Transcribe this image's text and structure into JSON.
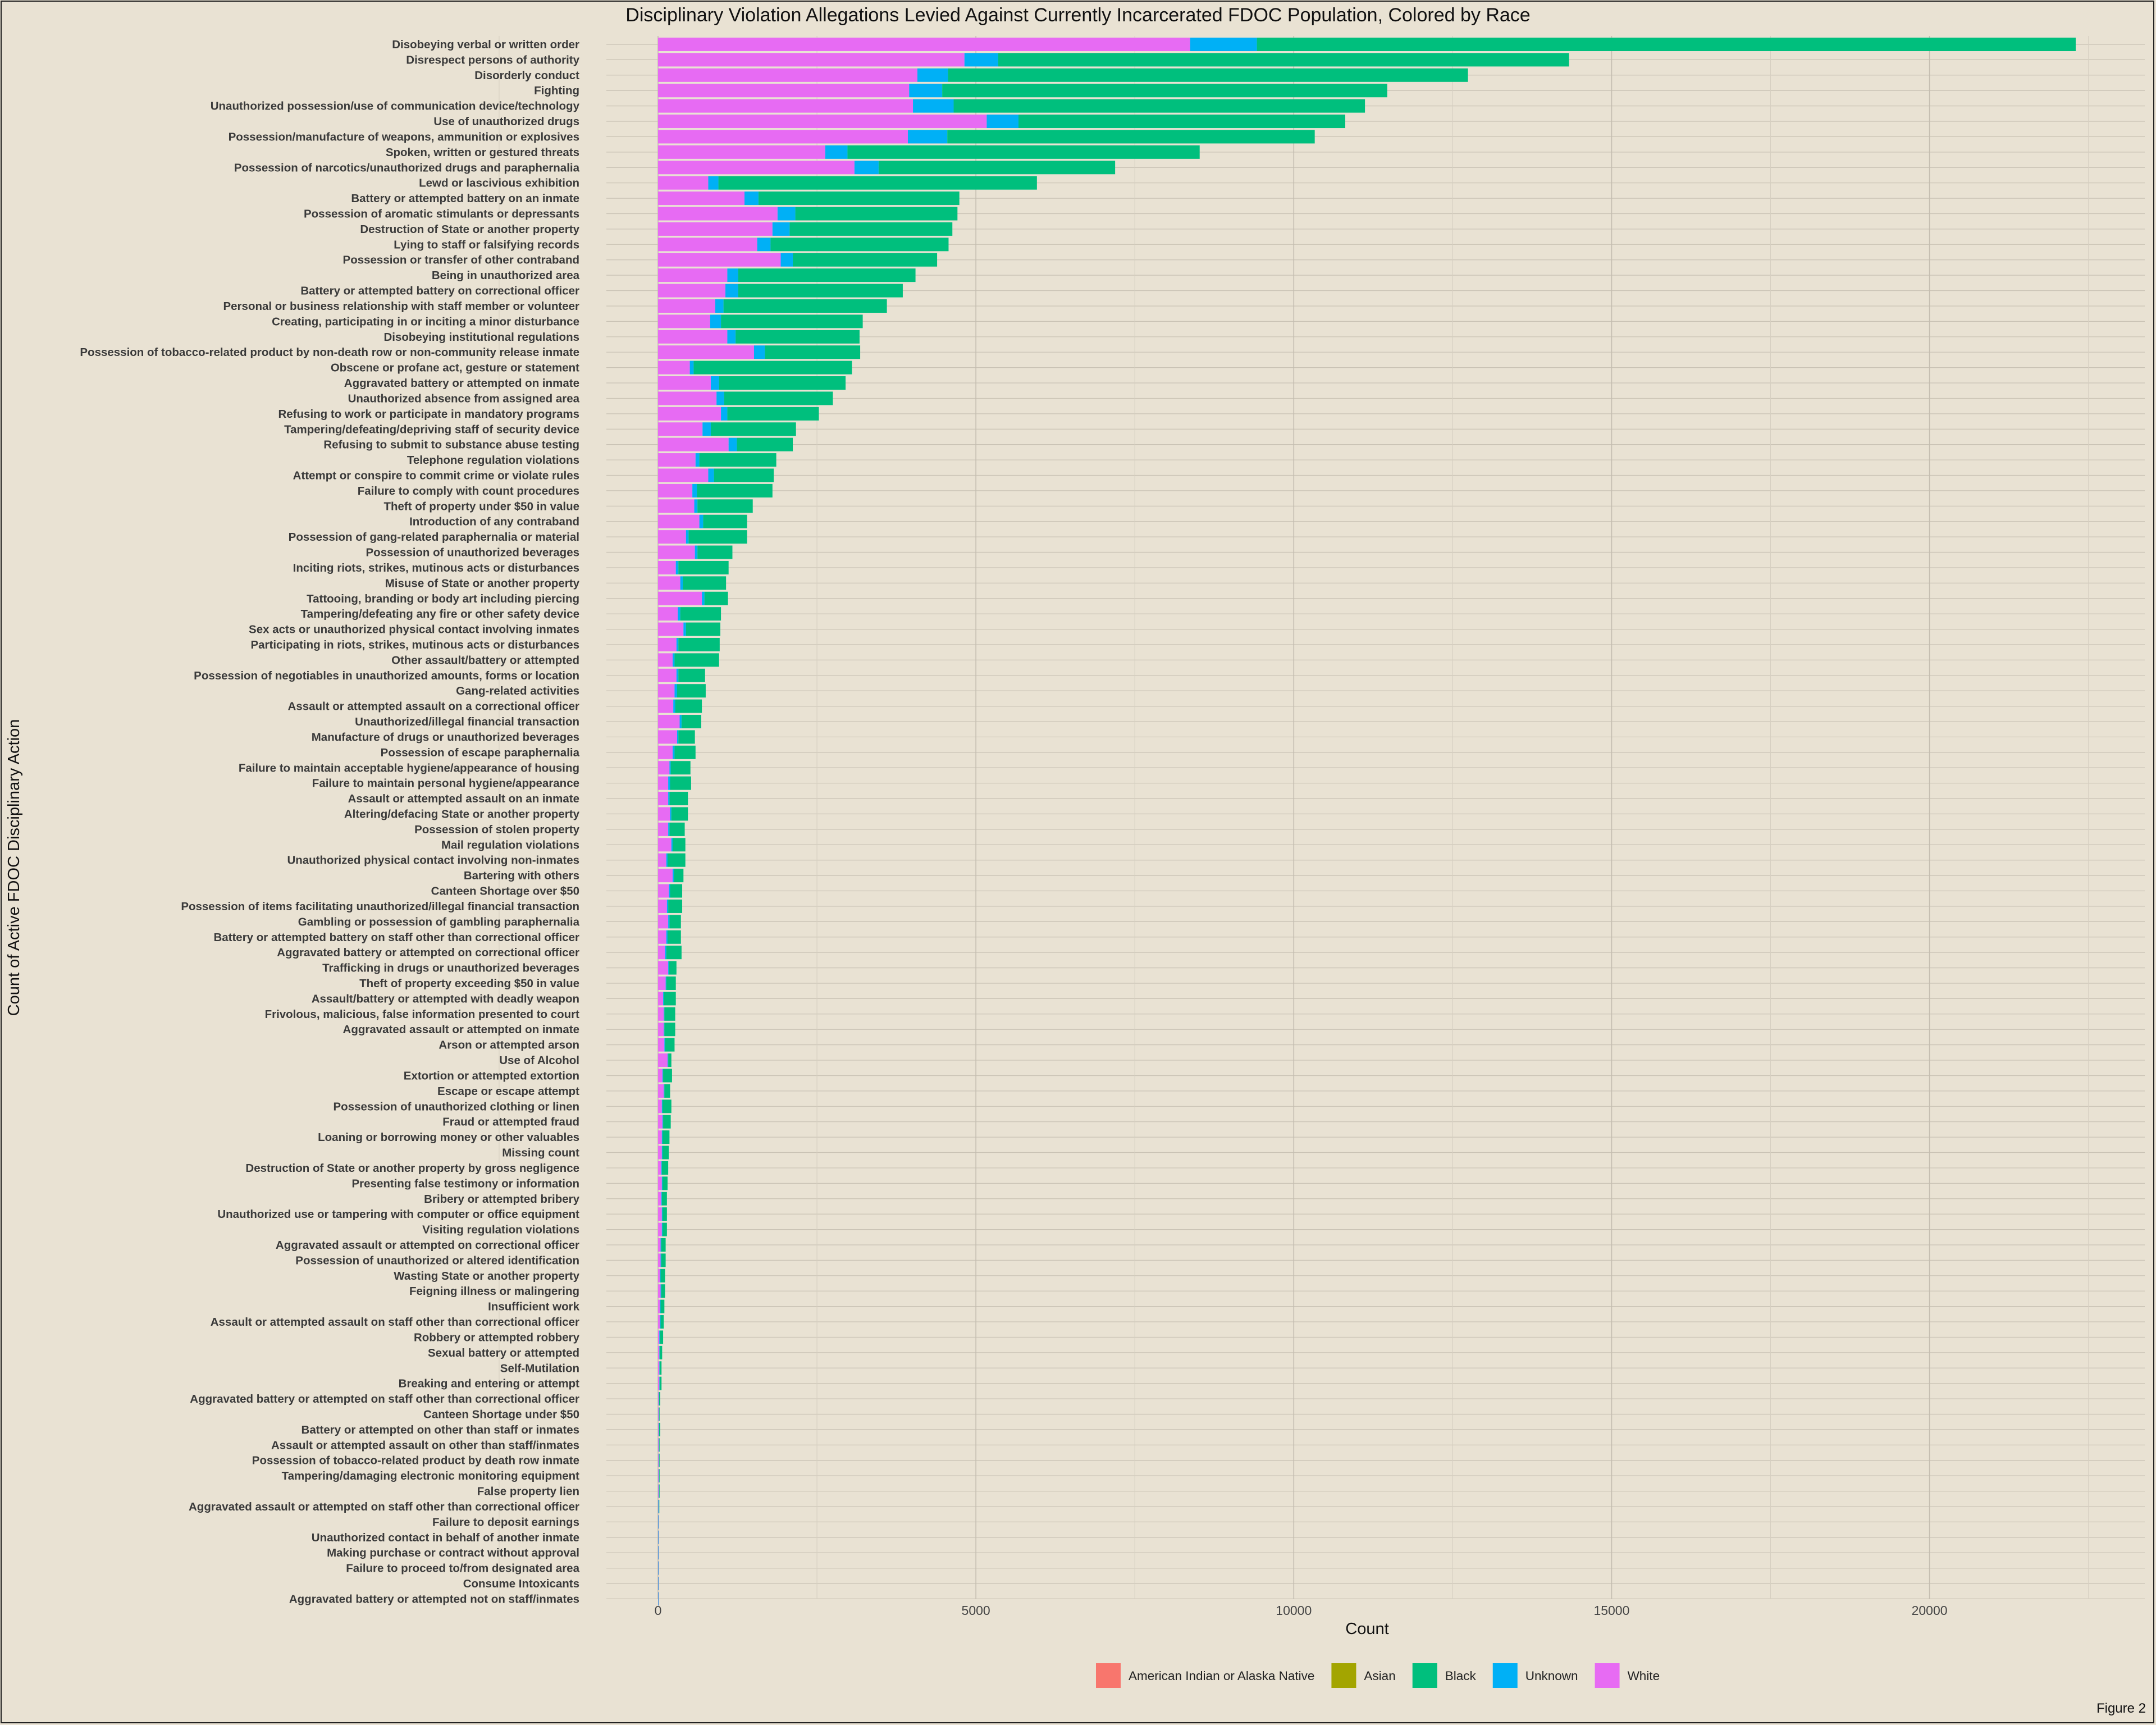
{
  "figure_label": "Figure 2",
  "chart_data": {
    "type": "bar",
    "orientation": "horizontal",
    "stacked": true,
    "title": "Disciplinary Violation Allegations Levied Against Currently Incarcerated FDOC Population, Colored by Race",
    "xlabel": "Count",
    "ylabel": "Count of Active FDOC Disciplinary Action",
    "xlim": [
      0,
      23000
    ],
    "xticks": [
      0,
      5000,
      10000,
      15000,
      20000
    ],
    "grid": true,
    "legend_position": "bottom",
    "legend": [
      {
        "name": "American Indian or Alaska Native",
        "color": "#f8766d"
      },
      {
        "name": "Asian",
        "color": "#a3a500"
      },
      {
        "name": "Black",
        "color": "#00bf7d"
      },
      {
        "name": "Unknown",
        "color": "#00b0f6"
      },
      {
        "name": "White",
        "color": "#e76bf3"
      }
    ],
    "stack_order": [
      "White",
      "Unknown",
      "Black"
    ],
    "categories": [
      "Disobeying verbal or written order",
      "Disrespect persons of authority",
      "Disorderly conduct",
      "Fighting",
      "Unauthorized possession/use of communication device/technology",
      "Use of unauthorized drugs",
      "Possession/manufacture of weapons, ammunition or explosives",
      "Spoken, written or gestured threats",
      "Possession of narcotics/unauthorized drugs and paraphernalia",
      "Lewd or lascivious exhibition",
      "Battery or attempted battery on an inmate",
      "Possession of aromatic stimulants or depressants",
      "Destruction of State or another property",
      "Lying to staff or falsifying records",
      "Possession or transfer of other contraband",
      "Being in unauthorized area",
      "Battery or attempted battery on correctional officer",
      "Personal or business relationship with staff member or volunteer",
      "Creating, participating in or inciting a minor disturbance",
      "Disobeying institutional regulations",
      "Possession of tobacco-related product by non-death row or non-community release inmate",
      "Obscene or profane act, gesture or statement",
      "Aggravated battery or attempted on inmate",
      "Unauthorized absence from assigned area",
      "Refusing to work or participate in mandatory programs",
      "Tampering/defeating/depriving staff of security device",
      "Refusing to submit to substance abuse testing",
      "Telephone regulation violations",
      "Attempt or conspire to commit crime or violate rules",
      "Failure to comply with count procedures",
      "Theft of property under $50 in value",
      "Introduction of any contraband",
      "Possession of gang-related paraphernalia or material",
      "Possession of unauthorized beverages",
      "Inciting riots, strikes, mutinous acts or disturbances",
      "Misuse of State or another property",
      "Tattooing, branding or body art including piercing",
      "Tampering/defeating any fire or other safety device",
      "Sex acts or unauthorized physical contact involving inmates",
      "Participating in riots, strikes, mutinous acts or disturbances",
      "Other assault/battery or attempted",
      "Possession of negotiables in unauthorized amounts, forms or location",
      "Gang-related activities",
      "Assault or attempted assault on a correctional officer",
      "Unauthorized/illegal financial transaction",
      "Manufacture of drugs or unauthorized beverages",
      "Possession of escape paraphernalia",
      "Failure to maintain acceptable hygiene/appearance of housing",
      "Failure to maintain personal hygiene/appearance",
      "Assault or attempted assault on an inmate",
      "Altering/defacing State or another property",
      "Possession of stolen property",
      "Mail regulation violations",
      "Unauthorized physical contact involving non-inmates",
      "Bartering with others",
      "Canteen Shortage over $50",
      "Possession of items facilitating unauthorized/illegal financial transaction",
      "Gambling or possession of gambling paraphernalia",
      "Battery or attempted battery on staff other than correctional officer",
      "Aggravated battery or attempted on correctional officer",
      "Trafficking in drugs or unauthorized beverages",
      "Theft of property exceeding $50 in value",
      "Assault/battery or attempted with deadly weapon",
      "Frivolous, malicious, false information presented to court",
      "Aggravated assault or attempted on inmate",
      "Arson or attempted arson",
      "Use of Alcohol",
      "Extortion or attempted extortion",
      "Escape or escape attempt",
      "Possession of unauthorized clothing or linen",
      "Fraud or attempted fraud",
      "Loaning or borrowing money or other valuables",
      "Missing count",
      "Destruction of State or another property by gross negligence",
      "Presenting false testimony or information",
      "Bribery or attempted bribery",
      "Unauthorized use or tampering with computer or office equipment",
      "Visiting regulation violations",
      "Aggravated assault or attempted on correctional officer",
      "Possession of unauthorized or altered identification",
      "Wasting State or another property",
      "Feigning illness or malingering",
      "Insufficient work",
      "Assault or attempted assault on staff other than correctional officer",
      "Robbery or attempted robbery",
      "Sexual battery or attempted",
      "Self-Mutilation",
      "Breaking and entering or attempt",
      "Aggravated battery or attempted on staff other than correctional officer",
      "Canteen Shortage under $50",
      "Battery or attempted on other than staff or inmates",
      "Assault or attempted assault on other than staff/inmates",
      "Possession of tobacco-related product by death row inmate",
      "Tampering/damaging electronic monitoring equipment",
      "False property lien",
      "Aggravated assault or attempted on staff other than correctional officer",
      "Failure to deposit earnings",
      "Unauthorized contact in behalf of another inmate",
      "Making purchase or contract without approval",
      "Failure to proceed to/from designated area",
      "Consume Intoxicants",
      "Aggravated battery or attempted not on staff/inmates"
    ],
    "series": [
      {
        "name": "White",
        "color": "#e76bf3",
        "values": [
          8370,
          4820,
          4080,
          3950,
          4010,
          5170,
          3930,
          2630,
          3090,
          790,
          1360,
          1880,
          1800,
          1560,
          1930,
          1090,
          1060,
          900,
          820,
          1090,
          1510,
          500,
          830,
          920,
          990,
          700,
          1110,
          590,
          790,
          540,
          570,
          650,
          440,
          580,
          280,
          350,
          690,
          310,
          400,
          290,
          230,
          290,
          260,
          240,
          340,
          300,
          230,
          180,
          160,
          160,
          190,
          160,
          210,
          130,
          230,
          170,
          140,
          160,
          130,
          110,
          160,
          120,
          80,
          90,
          90,
          100,
          150,
          70,
          90,
          60,
          70,
          60,
          60,
          50,
          60,
          50,
          60,
          60,
          40,
          40,
          30,
          40,
          30,
          30,
          20,
          20,
          20,
          20,
          10,
          10,
          10,
          10,
          10,
          10,
          10,
          5,
          5,
          5,
          5,
          5,
          5,
          5
        ]
      },
      {
        "name": "Unknown",
        "color": "#00b0f6",
        "values": [
          1050,
          530,
          480,
          520,
          640,
          500,
          620,
          350,
          380,
          160,
          220,
          280,
          270,
          210,
          190,
          170,
          200,
          130,
          170,
          130,
          170,
          60,
          130,
          120,
          100,
          130,
          130,
          60,
          90,
          70,
          50,
          60,
          40,
          40,
          40,
          40,
          40,
          40,
          40,
          30,
          30,
          30,
          40,
          30,
          30,
          20,
          30,
          20,
          30,
          20,
          20,
          20,
          20,
          20,
          20,
          20,
          20,
          20,
          20,
          20,
          10,
          10,
          10,
          10,
          10,
          10,
          10,
          10,
          10,
          10,
          10,
          10,
          10,
          10,
          10,
          10,
          10,
          10,
          10,
          10,
          10,
          10,
          10,
          10,
          10,
          5,
          5,
          5,
          5,
          5,
          5,
          5,
          5,
          5,
          5,
          5,
          5,
          5,
          5,
          5,
          5,
          5
        ]
      },
      {
        "name": "Black",
        "color": "#00bf7d",
        "values": [
          12880,
          8980,
          8180,
          7000,
          6470,
          5140,
          5780,
          5540,
          3720,
          5010,
          3160,
          2550,
          2560,
          2800,
          2270,
          2790,
          2590,
          2570,
          2230,
          1950,
          1500,
          2490,
          1990,
          1710,
          1440,
          1340,
          880,
          1210,
          940,
          1190,
          870,
          690,
          920,
          550,
          790,
          680,
          370,
          640,
          540,
          650,
          700,
          420,
          450,
          420,
          310,
          260,
          330,
          310,
          330,
          290,
          260,
          240,
          200,
          280,
          150,
          190,
          220,
          180,
          210,
          240,
          120,
          150,
          190,
          170,
          170,
          150,
          50,
          140,
          90,
          140,
          120,
          110,
          100,
          100,
          80,
          80,
          70,
          70,
          70,
          70,
          70,
          60,
          60,
          50,
          50,
          40,
          30,
          30,
          20,
          10,
          20,
          10,
          10,
          10,
          10,
          10,
          5,
          5,
          5,
          5,
          5,
          5
        ]
      }
    ]
  }
}
